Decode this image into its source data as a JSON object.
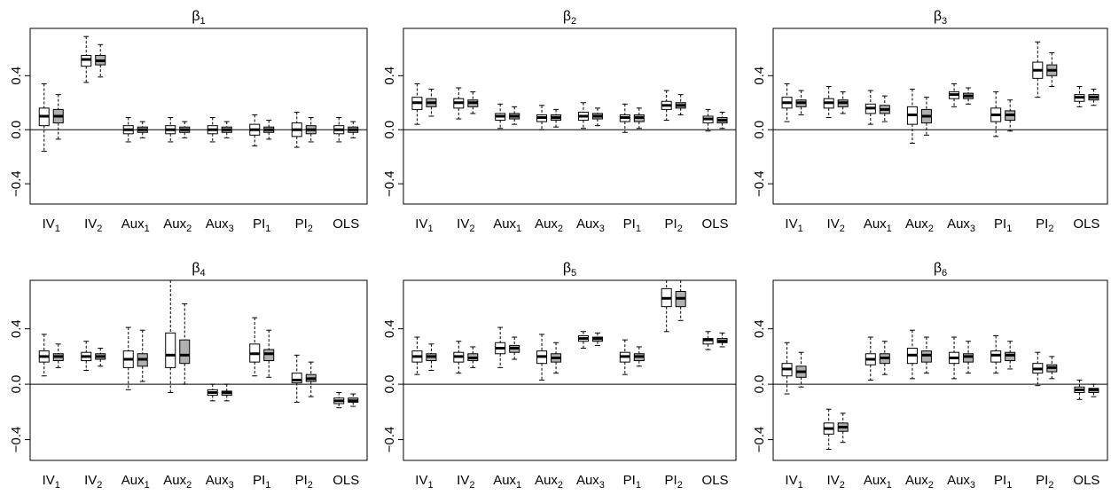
{
  "chart_data": [
    {
      "type": "boxplot",
      "title": "β1",
      "title_symbol": "β",
      "title_subscript": "1",
      "categories": [
        "IV1",
        "IV2",
        "Aux1",
        "Aux2",
        "Aux3",
        "PI1",
        "PI2",
        "OLS"
      ],
      "ylim": [
        -0.55,
        0.75
      ],
      "yticks": [
        "-0.4",
        "0.0",
        "0.4"
      ],
      "reference_line": 0,
      "series": [
        {
          "fill": "#ffffff",
          "boxes": [
            [
              -0.16,
              0.03,
              0.1,
              0.16,
              0.34
            ],
            [
              0.35,
              0.47,
              0.52,
              0.55,
              0.69
            ],
            [
              -0.09,
              -0.03,
              0.0,
              0.03,
              0.09
            ],
            [
              -0.09,
              -0.03,
              0.0,
              0.03,
              0.09
            ],
            [
              -0.09,
              -0.03,
              0.0,
              0.03,
              0.09
            ],
            [
              -0.12,
              -0.04,
              0.0,
              0.04,
              0.11
            ],
            [
              -0.13,
              -0.05,
              0.0,
              0.05,
              0.13
            ],
            [
              -0.09,
              -0.03,
              0.0,
              0.03,
              0.09
            ]
          ]
        },
        {
          "fill": "#b0b0b0",
          "boxes": [
            [
              -0.07,
              0.05,
              0.1,
              0.15,
              0.26
            ],
            [
              0.39,
              0.48,
              0.51,
              0.55,
              0.63
            ],
            [
              -0.06,
              -0.02,
              0.0,
              0.02,
              0.06
            ],
            [
              -0.06,
              -0.02,
              0.0,
              0.02,
              0.06
            ],
            [
              -0.06,
              -0.02,
              0.0,
              0.02,
              0.06
            ],
            [
              -0.07,
              -0.02,
              0.0,
              0.02,
              0.07
            ],
            [
              -0.09,
              -0.03,
              0.0,
              0.03,
              0.09
            ],
            [
              -0.06,
              -0.02,
              0.0,
              0.02,
              0.06
            ]
          ]
        }
      ]
    },
    {
      "type": "boxplot",
      "title": "β2",
      "title_symbol": "β",
      "title_subscript": "2",
      "categories": [
        "IV1",
        "IV2",
        "Aux1",
        "Aux2",
        "Aux3",
        "PI1",
        "PI2",
        "OLS"
      ],
      "ylim": [
        -0.55,
        0.75
      ],
      "yticks": [
        "-0.4",
        "0.0",
        "0.4"
      ],
      "reference_line": 0,
      "series": [
        {
          "fill": "#ffffff",
          "boxes": [
            [
              0.04,
              0.15,
              0.2,
              0.24,
              0.34
            ],
            [
              0.08,
              0.16,
              0.2,
              0.23,
              0.31
            ],
            [
              0.01,
              0.07,
              0.1,
              0.12,
              0.19
            ],
            [
              0.0,
              0.06,
              0.09,
              0.11,
              0.18
            ],
            [
              0.01,
              0.07,
              0.1,
              0.13,
              0.2
            ],
            [
              -0.02,
              0.06,
              0.09,
              0.11,
              0.19
            ],
            [
              0.07,
              0.15,
              0.18,
              0.21,
              0.29
            ],
            [
              -0.01,
              0.05,
              0.08,
              0.1,
              0.15
            ]
          ]
        },
        {
          "fill": "#b0b0b0",
          "boxes": [
            [
              0.1,
              0.17,
              0.2,
              0.23,
              0.3
            ],
            [
              0.12,
              0.17,
              0.2,
              0.22,
              0.28
            ],
            [
              0.04,
              0.08,
              0.1,
              0.12,
              0.17
            ],
            [
              0.02,
              0.07,
              0.09,
              0.11,
              0.15
            ],
            [
              0.03,
              0.08,
              0.1,
              0.12,
              0.16
            ],
            [
              0.01,
              0.06,
              0.09,
              0.11,
              0.16
            ],
            [
              0.11,
              0.16,
              0.18,
              0.2,
              0.26
            ],
            [
              0.01,
              0.05,
              0.07,
              0.09,
              0.13
            ]
          ]
        }
      ]
    },
    {
      "type": "boxplot",
      "title": "β3",
      "title_symbol": "β",
      "title_subscript": "3",
      "categories": [
        "IV1",
        "IV2",
        "Aux1",
        "Aux2",
        "Aux3",
        "PI1",
        "PI2",
        "OLS"
      ],
      "ylim": [
        -0.55,
        0.75
      ],
      "yticks": [
        "-0.4",
        "0.0",
        "0.4"
      ],
      "reference_line": 0,
      "series": [
        {
          "fill": "#ffffff",
          "boxes": [
            [
              0.06,
              0.16,
              0.2,
              0.24,
              0.34
            ],
            [
              0.09,
              0.16,
              0.2,
              0.23,
              0.32
            ],
            [
              0.04,
              0.12,
              0.16,
              0.19,
              0.29
            ],
            [
              -0.1,
              0.04,
              0.11,
              0.17,
              0.3
            ],
            [
              0.17,
              0.23,
              0.26,
              0.28,
              0.34
            ],
            [
              -0.05,
              0.06,
              0.11,
              0.16,
              0.28
            ],
            [
              0.24,
              0.38,
              0.44,
              0.5,
              0.65
            ],
            [
              0.17,
              0.21,
              0.24,
              0.26,
              0.32
            ]
          ]
        },
        {
          "fill": "#b0b0b0",
          "boxes": [
            [
              0.11,
              0.17,
              0.2,
              0.22,
              0.29
            ],
            [
              0.12,
              0.17,
              0.2,
              0.22,
              0.28
            ],
            [
              0.06,
              0.12,
              0.15,
              0.18,
              0.25
            ],
            [
              -0.04,
              0.05,
              0.1,
              0.15,
              0.24
            ],
            [
              0.19,
              0.23,
              0.25,
              0.27,
              0.31
            ],
            [
              -0.01,
              0.07,
              0.11,
              0.14,
              0.22
            ],
            [
              0.32,
              0.4,
              0.44,
              0.48,
              0.57
            ],
            [
              0.18,
              0.22,
              0.24,
              0.26,
              0.3
            ]
          ]
        }
      ]
    },
    {
      "type": "boxplot",
      "title": "β4",
      "title_symbol": "β",
      "title_subscript": "4",
      "categories": [
        "IV1",
        "IV2",
        "Aux1",
        "Aux2",
        "Aux3",
        "PI1",
        "PI2",
        "OLS"
      ],
      "ylim": [
        -0.55,
        0.75
      ],
      "yticks": [
        "-0.4",
        "0.0",
        "0.4"
      ],
      "reference_line": 0,
      "series": [
        {
          "fill": "#ffffff",
          "boxes": [
            [
              0.06,
              0.16,
              0.2,
              0.24,
              0.36
            ],
            [
              0.1,
              0.17,
              0.2,
              0.23,
              0.31
            ],
            [
              -0.04,
              0.12,
              0.18,
              0.24,
              0.41
            ],
            [
              -0.06,
              0.12,
              0.21,
              0.37,
              0.75
            ],
            [
              -0.12,
              -0.08,
              -0.06,
              -0.04,
              0.0
            ],
            [
              0.06,
              0.16,
              0.22,
              0.29,
              0.48
            ],
            [
              -0.13,
              0.01,
              0.03,
              0.08,
              0.21
            ],
            [
              -0.17,
              -0.14,
              -0.12,
              -0.1,
              -0.06
            ]
          ]
        },
        {
          "fill": "#b0b0b0",
          "boxes": [
            [
              0.12,
              0.17,
              0.2,
              0.22,
              0.29
            ],
            [
              0.13,
              0.18,
              0.2,
              0.22,
              0.26
            ],
            [
              0.02,
              0.13,
              0.18,
              0.22,
              0.39
            ],
            [
              0.0,
              0.15,
              0.21,
              0.32,
              0.58
            ],
            [
              -0.12,
              -0.08,
              -0.06,
              -0.05,
              0.0
            ],
            [
              0.05,
              0.17,
              0.22,
              0.25,
              0.39
            ],
            [
              -0.09,
              0.02,
              0.04,
              0.07,
              0.16
            ],
            [
              -0.16,
              -0.13,
              -0.12,
              -0.1,
              -0.07
            ]
          ]
        }
      ]
    },
    {
      "type": "boxplot",
      "title": "β5",
      "title_symbol": "β",
      "title_subscript": "5",
      "categories": [
        "IV1",
        "IV2",
        "Aux1",
        "Aux2",
        "Aux3",
        "PI1",
        "PI2",
        "OLS"
      ],
      "ylim": [
        -0.55,
        0.75
      ],
      "yticks": [
        "-0.4",
        "0.0",
        "0.4"
      ],
      "reference_line": 0,
      "series": [
        {
          "fill": "#ffffff",
          "boxes": [
            [
              0.07,
              0.16,
              0.2,
              0.24,
              0.34
            ],
            [
              0.08,
              0.16,
              0.2,
              0.23,
              0.31
            ],
            [
              0.12,
              0.22,
              0.26,
              0.3,
              0.41
            ],
            [
              0.03,
              0.15,
              0.2,
              0.24,
              0.36
            ],
            [
              0.26,
              0.31,
              0.33,
              0.35,
              0.38
            ],
            [
              0.07,
              0.16,
              0.2,
              0.23,
              0.32
            ],
            [
              0.38,
              0.56,
              0.62,
              0.69,
              0.75
            ],
            [
              0.25,
              0.29,
              0.32,
              0.33,
              0.38
            ]
          ]
        },
        {
          "fill": "#b0b0b0",
          "boxes": [
            [
              0.1,
              0.17,
              0.2,
              0.22,
              0.29
            ],
            [
              0.12,
              0.17,
              0.19,
              0.22,
              0.27
            ],
            [
              0.18,
              0.23,
              0.26,
              0.28,
              0.34
            ],
            [
              0.08,
              0.16,
              0.19,
              0.22,
              0.3
            ],
            [
              0.28,
              0.31,
              0.33,
              0.34,
              0.37
            ],
            [
              0.13,
              0.17,
              0.2,
              0.22,
              0.27
            ],
            [
              0.46,
              0.56,
              0.62,
              0.67,
              0.75
            ],
            [
              0.27,
              0.3,
              0.31,
              0.33,
              0.37
            ]
          ]
        }
      ]
    },
    {
      "type": "boxplot",
      "title": "β6",
      "title_symbol": "β",
      "title_subscript": "6",
      "categories": [
        "IV1",
        "IV2",
        "Aux1",
        "Aux2",
        "Aux3",
        "PI1",
        "PI2",
        "OLS"
      ],
      "ylim": [
        -0.55,
        0.75
      ],
      "yticks": [
        "-0.4",
        "0.0",
        "0.4"
      ],
      "reference_line": 0,
      "series": [
        {
          "fill": "#ffffff",
          "boxes": [
            [
              -0.07,
              0.06,
              0.11,
              0.15,
              0.3
            ],
            [
              -0.47,
              -0.36,
              -0.32,
              -0.28,
              -0.18
            ],
            [
              0.03,
              0.14,
              0.18,
              0.22,
              0.34
            ],
            [
              0.04,
              0.15,
              0.21,
              0.26,
              0.39
            ],
            [
              0.04,
              0.15,
              0.19,
              0.23,
              0.34
            ],
            [
              0.08,
              0.16,
              0.21,
              0.24,
              0.35
            ],
            [
              -0.01,
              0.08,
              0.11,
              0.15,
              0.23
            ],
            [
              -0.11,
              -0.06,
              -0.04,
              -0.02,
              0.03
            ]
          ]
        },
        {
          "fill": "#b0b0b0",
          "boxes": [
            [
              -0.02,
              0.05,
              0.09,
              0.13,
              0.23
            ],
            [
              -0.42,
              -0.34,
              -0.31,
              -0.28,
              -0.21
            ],
            [
              0.07,
              0.15,
              0.19,
              0.22,
              0.31
            ],
            [
              0.08,
              0.16,
              0.21,
              0.24,
              0.34
            ],
            [
              0.08,
              0.16,
              0.2,
              0.22,
              0.31
            ],
            [
              0.11,
              0.17,
              0.21,
              0.23,
              0.31
            ],
            [
              0.04,
              0.09,
              0.12,
              0.14,
              0.2
            ],
            [
              -0.09,
              -0.06,
              -0.04,
              -0.03,
              0.0
            ]
          ]
        }
      ]
    }
  ]
}
